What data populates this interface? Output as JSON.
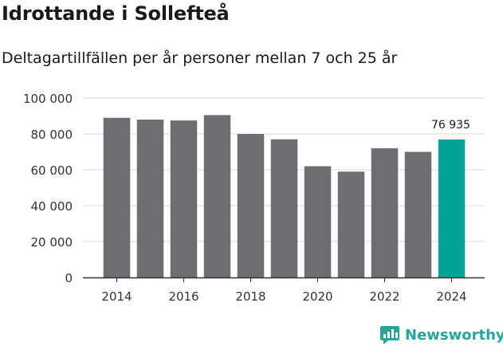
{
  "title": "Idrottande i Sollefteå",
  "subtitle": "Deltagartillfällen per år personer mellan 7 och 25 år",
  "brand": {
    "name": "Newsworthy",
    "icon": "newsworthy-logo-icon",
    "color": "#2aa39a"
  },
  "chart_data": {
    "type": "bar",
    "title": "Idrottande i Sollefteå",
    "subtitle": "Deltagartillfällen per år personer mellan 7 och 25 år",
    "xlabel": "",
    "ylabel": "",
    "categories": [
      2014,
      2015,
      2016,
      2017,
      2018,
      2019,
      2020,
      2021,
      2022,
      2023,
      2024
    ],
    "values": [
      89000,
      88000,
      87500,
      90500,
      80000,
      77000,
      62000,
      59000,
      72000,
      70000,
      76935
    ],
    "ylim": [
      0,
      100000
    ],
    "yticks": [
      0,
      20000,
      40000,
      60000,
      80000,
      100000
    ],
    "ytick_labels": [
      "0",
      "20 000",
      "40 000",
      "60 000",
      "80 000",
      "100 000"
    ],
    "xticks": [
      2014,
      2016,
      2018,
      2020,
      2022,
      2024
    ],
    "xtick_labels": [
      "2014",
      "2016",
      "2018",
      "2020",
      "2022",
      "2024"
    ],
    "grid": true,
    "highlight_index": 10,
    "highlight_label": "76 935",
    "colors": {
      "bar": "#6e6d72",
      "highlight": "#00a396",
      "grid": "#d9d9d9",
      "axis": "#333333"
    }
  }
}
